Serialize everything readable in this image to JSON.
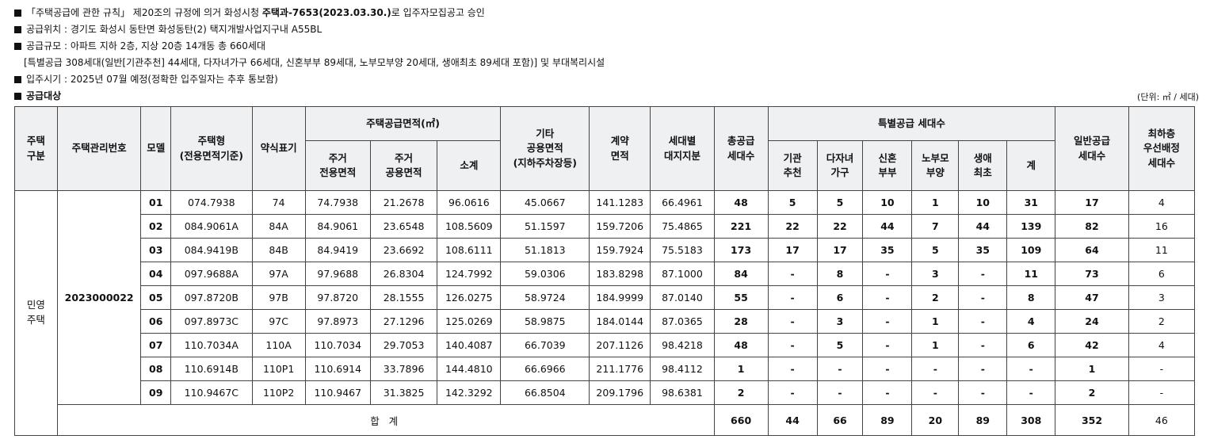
{
  "intro": {
    "l1_pre": "「주택공급에 관한 규칙」 제20조의 규정에 의거 화성시청 ",
    "l1_bold": "주택과-7653(2023.03.30.)",
    "l1_post": "로 입주자모집공고 승인",
    "l2": "공급위치 : 경기도 화성시 동탄면 화성동탄(2) 택지개발사업지구내 A55BL",
    "l3": "공급규모 : 아파트 지하 2층, 지상 20층 14개동 총 660세대",
    "l4": "[특별공급 308세대(일반[기관추천] 44세대, 다자녀가구 66세대, 신혼부부 89세대, 노부모부양 20세대, 생애최초 89세대 포함)] 및 부대복리시설",
    "l5": "입주시기 : 2025년 07월 예정(정확한 입주일자는 추후 통보함)",
    "l6": "공급대상"
  },
  "unit_note": "(단위: ㎡ / 세대)",
  "headers": {
    "housing_type": "주택\n구분",
    "mgmt_no": "주택관리번호",
    "model": "모델",
    "unit_type": "주택형\n(전용면적기준)",
    "abbr": "약식표기",
    "supply_area": "주택공급면적(㎡)",
    "private_area": "주거\n전용면적",
    "common_area": "주거\n공용면적",
    "subtotal": "소계",
    "other_common": "기타\n공용면적\n(지하주차장등)",
    "contract_area": "계약\n면적",
    "land_share": "세대별\n대지지분",
    "total_supply": "총공급\n세대수",
    "special": "특별공급 세대수",
    "sp_inst": "기관\n추천",
    "sp_multi": "다자녀\n가구",
    "sp_newly": "신혼\n부부",
    "sp_parents": "노부모\n부양",
    "sp_first": "생애\n최초",
    "sp_total": "계",
    "general": "일반공급\n세대수",
    "lowest": "최하층\n우선배정\n세대수"
  },
  "housing_type_value": "민영\n주택",
  "mgmt_no_value": "2023000022",
  "rows": [
    {
      "model": "01",
      "type": "074.7938",
      "abbr": "74",
      "private": "74.7938",
      "common": "21.2678",
      "sub": "96.0616",
      "other": "45.0667",
      "contract": "141.1283",
      "land": "66.4961",
      "total": "48",
      "inst": "5",
      "multi": "5",
      "newly": "10",
      "parents": "1",
      "first": "10",
      "sp_sum": "31",
      "general": "17",
      "lowest": "4"
    },
    {
      "model": "02",
      "type": "084.9061A",
      "abbr": "84A",
      "private": "84.9061",
      "common": "23.6548",
      "sub": "108.5609",
      "other": "51.1597",
      "contract": "159.7206",
      "land": "75.4865",
      "total": "221",
      "inst": "22",
      "multi": "22",
      "newly": "44",
      "parents": "7",
      "first": "44",
      "sp_sum": "139",
      "general": "82",
      "lowest": "16"
    },
    {
      "model": "03",
      "type": "084.9419B",
      "abbr": "84B",
      "private": "84.9419",
      "common": "23.6692",
      "sub": "108.6111",
      "other": "51.1813",
      "contract": "159.7924",
      "land": "75.5183",
      "total": "173",
      "inst": "17",
      "multi": "17",
      "newly": "35",
      "parents": "5",
      "first": "35",
      "sp_sum": "109",
      "general": "64",
      "lowest": "11"
    },
    {
      "model": "04",
      "type": "097.9688A",
      "abbr": "97A",
      "private": "97.9688",
      "common": "26.8304",
      "sub": "124.7992",
      "other": "59.0306",
      "contract": "183.8298",
      "land": "87.1000",
      "total": "84",
      "inst": "-",
      "multi": "8",
      "newly": "-",
      "parents": "3",
      "first": "-",
      "sp_sum": "11",
      "general": "73",
      "lowest": "6"
    },
    {
      "model": "05",
      "type": "097.8720B",
      "abbr": "97B",
      "private": "97.8720",
      "common": "28.1555",
      "sub": "126.0275",
      "other": "58.9724",
      "contract": "184.9999",
      "land": "87.0140",
      "total": "55",
      "inst": "-",
      "multi": "6",
      "newly": "-",
      "parents": "2",
      "first": "-",
      "sp_sum": "8",
      "general": "47",
      "lowest": "3"
    },
    {
      "model": "06",
      "type": "097.8973C",
      "abbr": "97C",
      "private": "97.8973",
      "common": "27.1296",
      "sub": "125.0269",
      "other": "58.9875",
      "contract": "184.0144",
      "land": "87.0365",
      "total": "28",
      "inst": "-",
      "multi": "3",
      "newly": "-",
      "parents": "1",
      "first": "-",
      "sp_sum": "4",
      "general": "24",
      "lowest": "2"
    },
    {
      "model": "07",
      "type": "110.7034A",
      "abbr": "110A",
      "private": "110.7034",
      "common": "29.7053",
      "sub": "140.4087",
      "other": "66.7039",
      "contract": "207.1126",
      "land": "98.4218",
      "total": "48",
      "inst": "-",
      "multi": "5",
      "newly": "-",
      "parents": "1",
      "first": "-",
      "sp_sum": "6",
      "general": "42",
      "lowest": "4"
    },
    {
      "model": "08",
      "type": "110.6914B",
      "abbr": "110P1",
      "private": "110.6914",
      "common": "33.7896",
      "sub": "144.4810",
      "other": "66.6966",
      "contract": "211.1776",
      "land": "98.4112",
      "total": "1",
      "inst": "-",
      "multi": "-",
      "newly": "-",
      "parents": "-",
      "first": "-",
      "sp_sum": "-",
      "general": "1",
      "lowest": "-"
    },
    {
      "model": "09",
      "type": "110.9467C",
      "abbr": "110P2",
      "private": "110.9467",
      "common": "31.3825",
      "sub": "142.3292",
      "other": "66.8504",
      "contract": "209.1796",
      "land": "98.6381",
      "total": "2",
      "inst": "-",
      "multi": "-",
      "newly": "-",
      "parents": "-",
      "first": "-",
      "sp_sum": "-",
      "general": "2",
      "lowest": "-"
    }
  ],
  "total_row": {
    "label": "합 계",
    "total": "660",
    "inst": "44",
    "multi": "66",
    "newly": "89",
    "parents": "20",
    "first": "89",
    "sp_sum": "308",
    "general": "352",
    "lowest": "46"
  }
}
